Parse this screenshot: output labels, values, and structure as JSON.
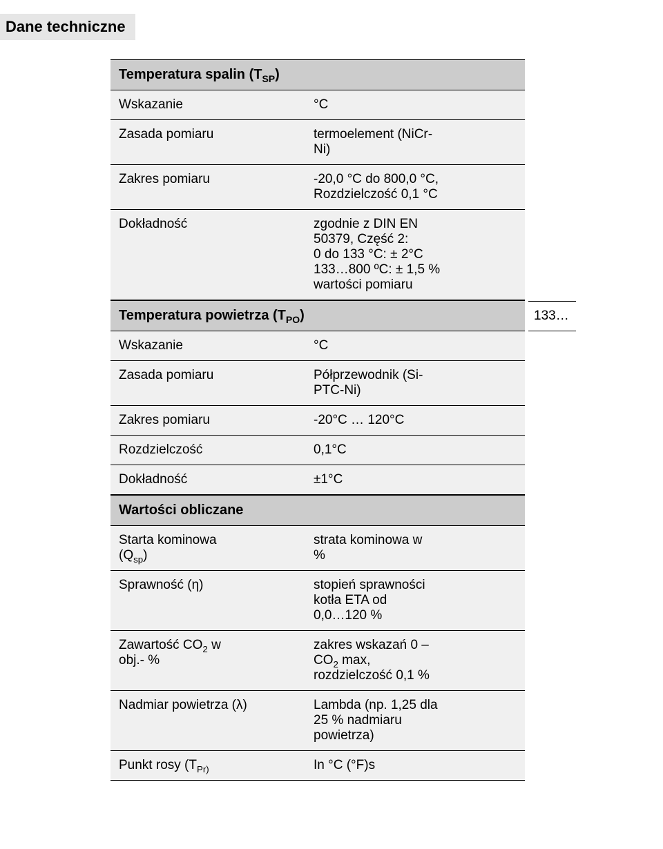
{
  "section_tag": "Dane techniczne",
  "tables": {
    "tsp": {
      "header": "Temperatura spalin (T_SP)",
      "rows": [
        {
          "label": "Wskazanie",
          "value": "°C"
        },
        {
          "label": "Zasada pomiaru",
          "value": "termoelement (NiCr-Ni)"
        },
        {
          "label": "Zakres pomiaru",
          "value": "-20,0 °C do 800,0 °C,\nRozdzielczość 0,1 °C"
        },
        {
          "label": "Dokładność",
          "value": "zgodnie z DIN EN 50379, Część 2:\n0 do 133 °C: ± 2°C\n133…800 ºC: ± 1,5 % wartości pomiaru"
        }
      ]
    },
    "tpo": {
      "header": "Temperatura powietrza (T_PO)",
      "outside_note": "133…",
      "rows": [
        {
          "label": "Wskazanie",
          "value": "°C"
        },
        {
          "label": "Zasada pomiaru",
          "value": "Półprzewodnik (Si-PTC-Ni)"
        },
        {
          "label": "Zakres pomiaru",
          "value": "-20°C … 120°C"
        },
        {
          "label": "Rozdzielczość",
          "value": "0,1°C"
        },
        {
          "label": "Dokładność",
          "value": "±1°C"
        }
      ]
    },
    "calc": {
      "header": "Wartości obliczane",
      "rows": [
        {
          "label": "Starta kominowa (Q_sp)",
          "value": "strata kominowa w %"
        },
        {
          "label": "Sprawność (η)",
          "value": "stopień sprawności kotła ETA od 0,0…120 %"
        },
        {
          "label": "Zawartość CO_2 w obj.- %",
          "value": "zakres wskazań 0 – CO_2 max, rozdzielczość 0,1 %"
        },
        {
          "label": "Nadmiar powietrza (λ)",
          "value": "Lambda (np. 1,25 dla 25 % nadmiaru powietrza)"
        },
        {
          "label": "Punkt rosy (T_Pr)",
          "value": "In °C (°F)s"
        }
      ]
    }
  },
  "colors": {
    "header_bg": "#cccccc",
    "row_bg": "#f0f0f0",
    "tag_bg": "#e6e6e6",
    "border": "#000000",
    "text": "#000000",
    "page_bg": "#ffffff"
  },
  "fonts": {
    "family": "Arial",
    "section_tag_size": 22,
    "header_size": 20,
    "body_size": 19
  }
}
